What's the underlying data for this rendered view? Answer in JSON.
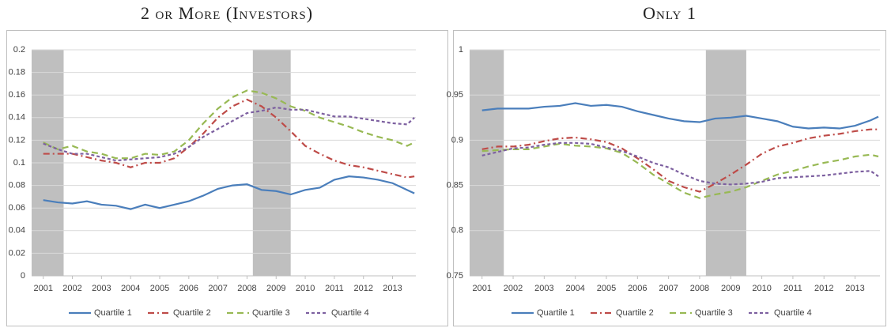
{
  "chart_data": [
    {
      "type": "line",
      "title": "2 or More (Investors)",
      "x": [
        2001,
        2001.5,
        2002,
        2002.5,
        2003,
        2003.5,
        2004,
        2004.5,
        2005,
        2005.5,
        2006,
        2006.5,
        2007,
        2007.5,
        2008,
        2008.5,
        2009,
        2009.5,
        2010,
        2010.5,
        2011,
        2011.5,
        2012,
        2012.5,
        2013,
        2013.5,
        2013.75
      ],
      "xlim": [
        2000.6,
        2013.8
      ],
      "xticks": [
        2001,
        2002,
        2003,
        2004,
        2005,
        2006,
        2007,
        2008,
        2009,
        2010,
        2011,
        2012,
        2013
      ],
      "ylim": [
        0,
        0.2
      ],
      "yticks": [
        0,
        0.02,
        0.04,
        0.06,
        0.08,
        0.1,
        0.12,
        0.14,
        0.16,
        0.18,
        0.2
      ],
      "grid": true,
      "shaded_ranges": [
        [
          2000.6,
          2001.7
        ],
        [
          2008.2,
          2009.5
        ]
      ],
      "shade_color": "#bfbfbf",
      "series": [
        {
          "name": "Quartile 1",
          "color": "#4a7ebb",
          "dash": "solid",
          "values": [
            0.067,
            0.065,
            0.064,
            0.066,
            0.063,
            0.062,
            0.059,
            0.063,
            0.06,
            0.063,
            0.066,
            0.071,
            0.077,
            0.08,
            0.081,
            0.076,
            0.075,
            0.072,
            0.076,
            0.078,
            0.085,
            0.088,
            0.087,
            0.085,
            0.082,
            0.076,
            0.073
          ]
        },
        {
          "name": "Quartile 2",
          "color": "#be4b48",
          "dash": "dashdot",
          "values": [
            0.108,
            0.108,
            0.108,
            0.105,
            0.102,
            0.1,
            0.096,
            0.1,
            0.1,
            0.104,
            0.114,
            0.126,
            0.14,
            0.15,
            0.156,
            0.15,
            0.14,
            0.128,
            0.115,
            0.108,
            0.102,
            0.098,
            0.096,
            0.093,
            0.09,
            0.087,
            0.088
          ]
        },
        {
          "name": "Quartile 3",
          "color": "#98b954",
          "dash": "dash",
          "values": [
            0.118,
            0.112,
            0.115,
            0.11,
            0.108,
            0.104,
            0.104,
            0.108,
            0.107,
            0.11,
            0.12,
            0.135,
            0.148,
            0.158,
            0.164,
            0.162,
            0.157,
            0.15,
            0.146,
            0.14,
            0.136,
            0.132,
            0.127,
            0.123,
            0.12,
            0.115,
            0.118
          ]
        },
        {
          "name": "Quartile 4",
          "color": "#7d60a0",
          "dash": "shortdash",
          "values": [
            0.117,
            0.112,
            0.108,
            0.108,
            0.105,
            0.102,
            0.103,
            0.104,
            0.105,
            0.108,
            0.114,
            0.123,
            0.13,
            0.137,
            0.144,
            0.146,
            0.149,
            0.147,
            0.147,
            0.144,
            0.141,
            0.141,
            0.139,
            0.137,
            0.135,
            0.134,
            0.14
          ]
        }
      ]
    },
    {
      "type": "line",
      "title": "Only 1",
      "x": [
        2001,
        2001.5,
        2002,
        2002.5,
        2003,
        2003.5,
        2004,
        2004.5,
        2005,
        2005.5,
        2006,
        2006.5,
        2007,
        2007.5,
        2008,
        2008.5,
        2009,
        2009.5,
        2010,
        2010.5,
        2011,
        2011.5,
        2012,
        2012.5,
        2013,
        2013.5,
        2013.75
      ],
      "xlim": [
        2000.6,
        2013.8
      ],
      "xticks": [
        2001,
        2002,
        2003,
        2004,
        2005,
        2006,
        2007,
        2008,
        2009,
        2010,
        2011,
        2012,
        2013
      ],
      "ylim": [
        0.75,
        1
      ],
      "yticks": [
        0.75,
        0.8,
        0.85,
        0.9,
        0.95,
        1
      ],
      "grid": true,
      "shaded_ranges": [
        [
          2000.6,
          2001.7
        ],
        [
          2008.2,
          2009.5
        ]
      ],
      "shade_color": "#bfbfbf",
      "series": [
        {
          "name": "Quartile 1",
          "color": "#4a7ebb",
          "dash": "solid",
          "values": [
            0.933,
            0.935,
            0.935,
            0.935,
            0.937,
            0.938,
            0.941,
            0.938,
            0.939,
            0.937,
            0.932,
            0.928,
            0.924,
            0.921,
            0.92,
            0.924,
            0.925,
            0.927,
            0.924,
            0.921,
            0.915,
            0.913,
            0.914,
            0.913,
            0.916,
            0.922,
            0.926
          ]
        },
        {
          "name": "Quartile 2",
          "color": "#be4b48",
          "dash": "dashdot",
          "values": [
            0.89,
            0.893,
            0.893,
            0.895,
            0.899,
            0.902,
            0.903,
            0.901,
            0.898,
            0.891,
            0.88,
            0.868,
            0.855,
            0.848,
            0.843,
            0.852,
            0.862,
            0.873,
            0.885,
            0.893,
            0.897,
            0.902,
            0.905,
            0.907,
            0.91,
            0.912,
            0.912
          ]
        },
        {
          "name": "Quartile 3",
          "color": "#98b954",
          "dash": "dash",
          "values": [
            0.888,
            0.889,
            0.89,
            0.89,
            0.893,
            0.896,
            0.894,
            0.893,
            0.891,
            0.886,
            0.875,
            0.862,
            0.852,
            0.842,
            0.836,
            0.84,
            0.843,
            0.848,
            0.855,
            0.862,
            0.866,
            0.871,
            0.875,
            0.878,
            0.882,
            0.884,
            0.882
          ]
        },
        {
          "name": "Quartile 4",
          "color": "#7d60a0",
          "dash": "shortdash",
          "values": [
            0.883,
            0.887,
            0.891,
            0.892,
            0.895,
            0.897,
            0.897,
            0.896,
            0.892,
            0.888,
            0.882,
            0.875,
            0.87,
            0.862,
            0.855,
            0.852,
            0.851,
            0.852,
            0.854,
            0.858,
            0.859,
            0.86,
            0.861,
            0.863,
            0.865,
            0.866,
            0.86
          ]
        }
      ]
    }
  ]
}
